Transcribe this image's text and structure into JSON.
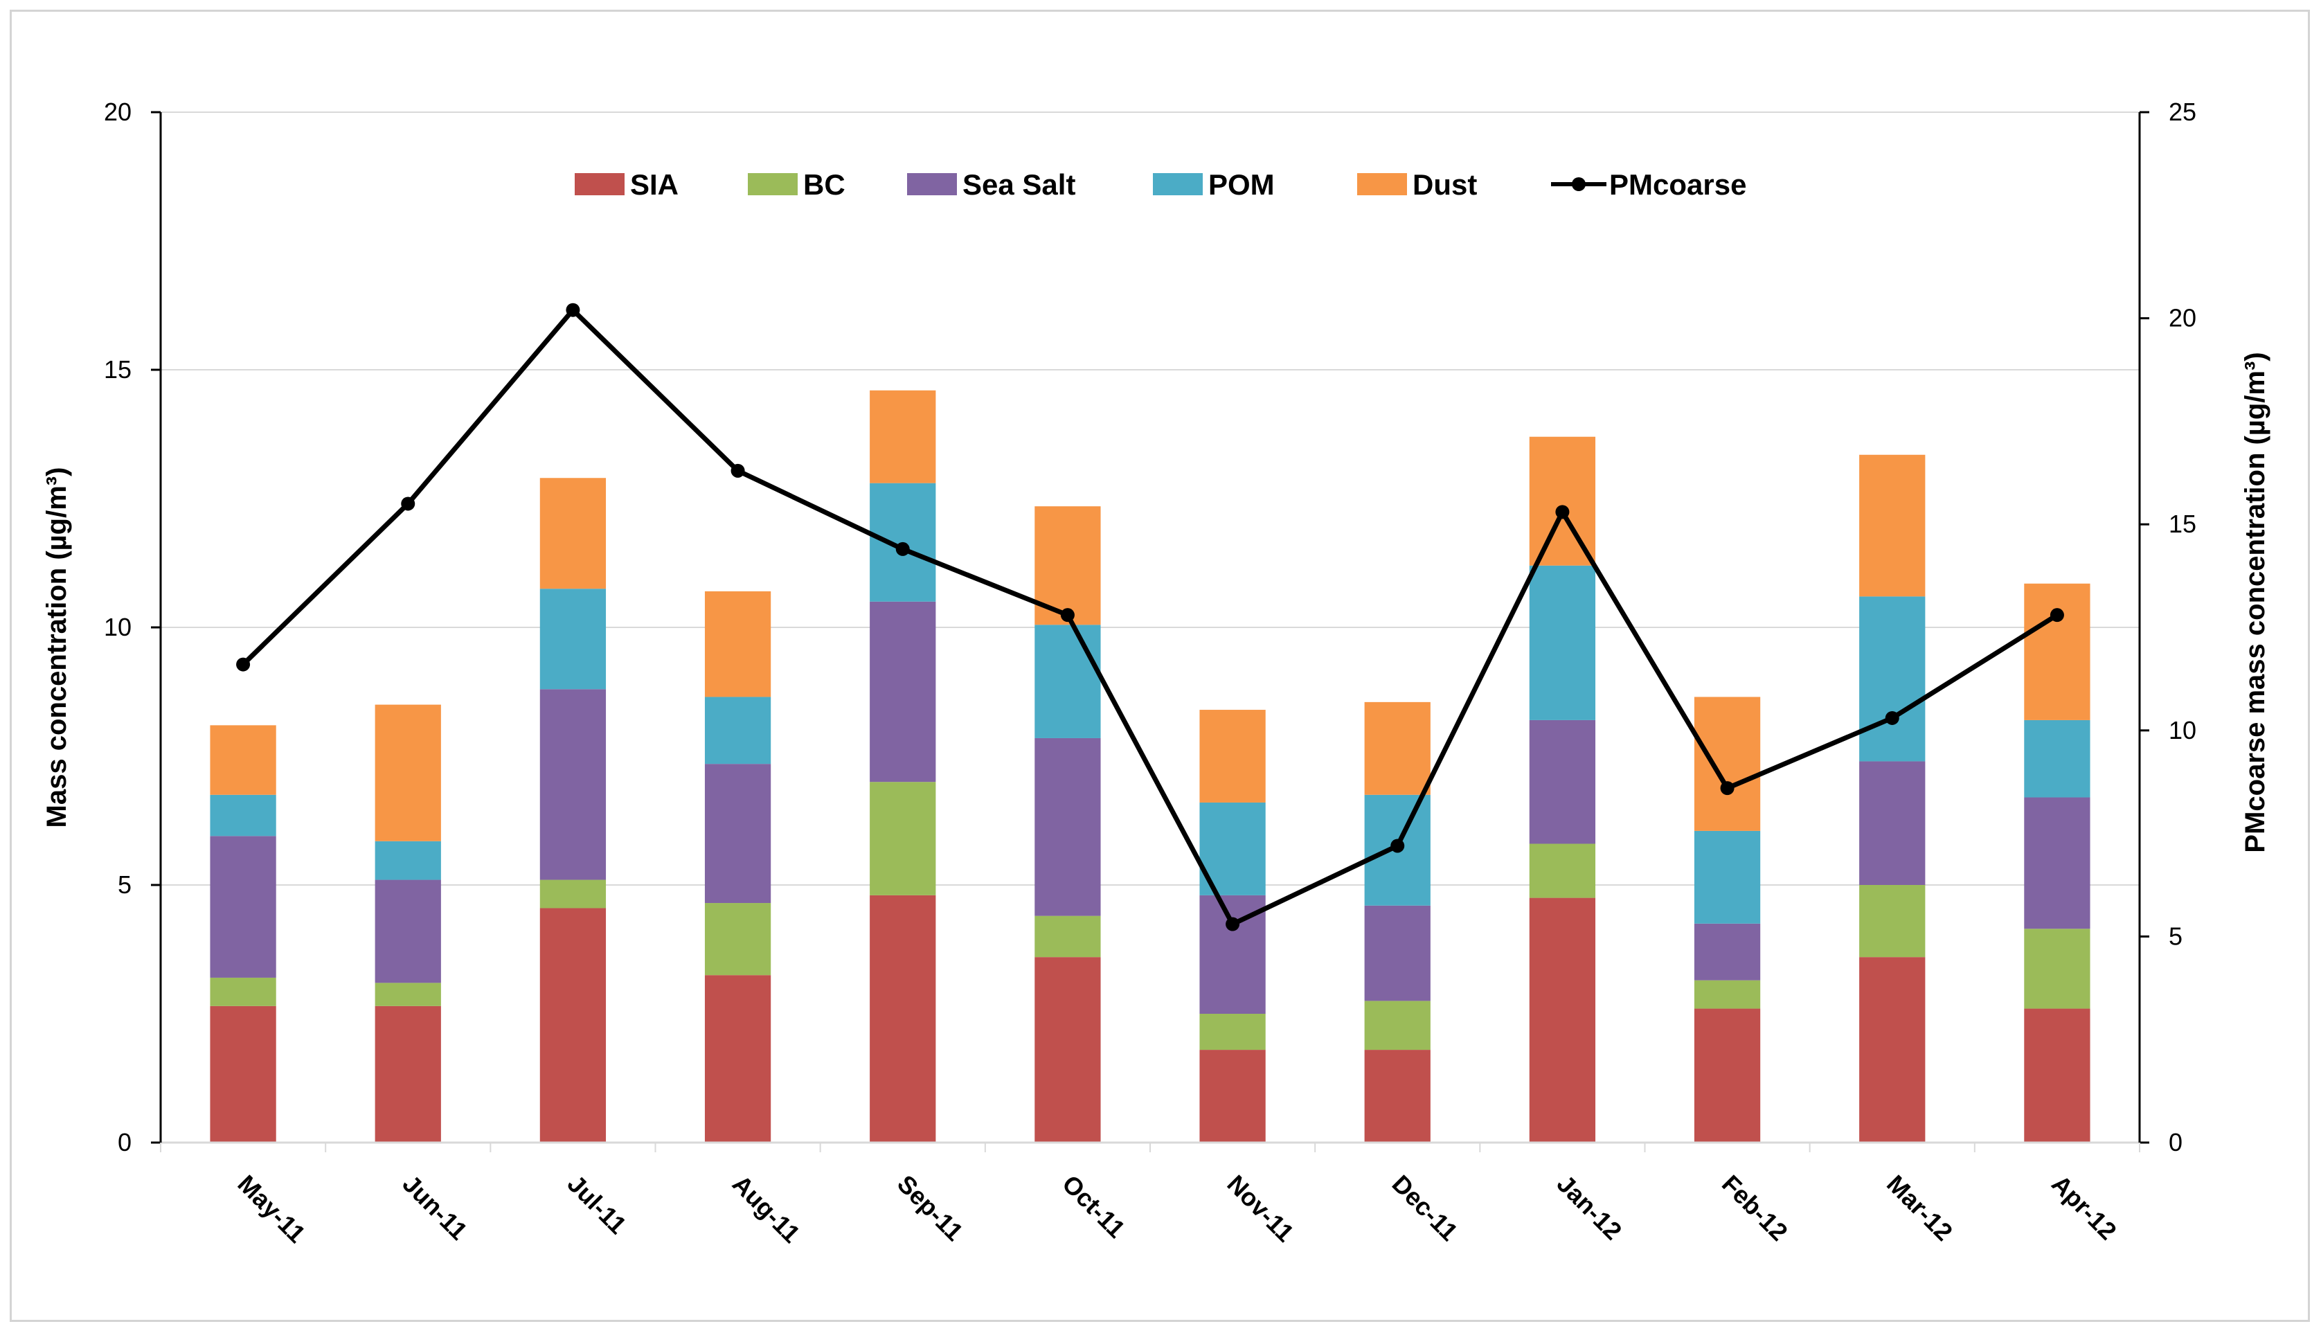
{
  "chart_data": {
    "type": "bar",
    "stacked": true,
    "categories": [
      "May-11",
      "Jun-11",
      "Jul-11",
      "Aug-11",
      "Sep-11",
      "Oct-11",
      "Nov-11",
      "Dec-11",
      "Jan-12",
      "Feb-12",
      "Mar-12",
      "Apr-12"
    ],
    "series": [
      {
        "name": "SIA",
        "color": "#c0504d",
        "axis": "left",
        "values": [
          2.65,
          2.65,
          4.55,
          3.25,
          4.8,
          3.6,
          1.8,
          1.8,
          4.75,
          2.6,
          3.6,
          2.6
        ]
      },
      {
        "name": "BC",
        "color": "#9bbb59",
        "axis": "left",
        "values": [
          0.55,
          0.45,
          0.55,
          1.4,
          2.2,
          0.8,
          0.7,
          0.95,
          1.05,
          0.55,
          1.4,
          1.55
        ]
      },
      {
        "name": "Sea Salt",
        "color": "#8064a2",
        "axis": "left",
        "values": [
          2.75,
          2.0,
          3.7,
          2.7,
          3.5,
          3.45,
          2.3,
          1.85,
          2.4,
          1.1,
          2.4,
          2.55
        ]
      },
      {
        "name": "POM",
        "color": "#4bacc6",
        "axis": "left",
        "values": [
          0.8,
          0.75,
          1.95,
          1.3,
          2.3,
          2.2,
          1.8,
          2.15,
          3.0,
          1.8,
          3.2,
          1.5
        ]
      },
      {
        "name": "Dust",
        "color": "#f79646",
        "axis": "left",
        "values": [
          1.35,
          2.65,
          2.15,
          2.05,
          1.8,
          2.3,
          1.8,
          1.8,
          2.5,
          2.6,
          2.75,
          2.65
        ]
      }
    ],
    "line_series": {
      "name": "PMcoarse",
      "color": "#000000",
      "axis": "right",
      "type": "line",
      "values": [
        11.6,
        15.5,
        20.2,
        16.3,
        14.4,
        12.8,
        5.3,
        7.2,
        15.3,
        8.6,
        10.3,
        12.8
      ]
    },
    "ylabel": "Mass concentration (µg/m³)",
    "ylim": [
      0,
      20
    ],
    "yticks": [
      "0",
      "5",
      "10",
      "15",
      "20"
    ],
    "y2label": "PMcoarse mass concentration (µg/m³)",
    "y2lim": [
      0,
      25
    ],
    "y2ticks": [
      "0",
      "5",
      "10",
      "15",
      "20",
      "25"
    ],
    "legend": [
      "SIA",
      "BC",
      "Sea Salt",
      "POM",
      "Dust",
      "PMcoarse"
    ],
    "legend_position": "top-center",
    "grid": true
  }
}
